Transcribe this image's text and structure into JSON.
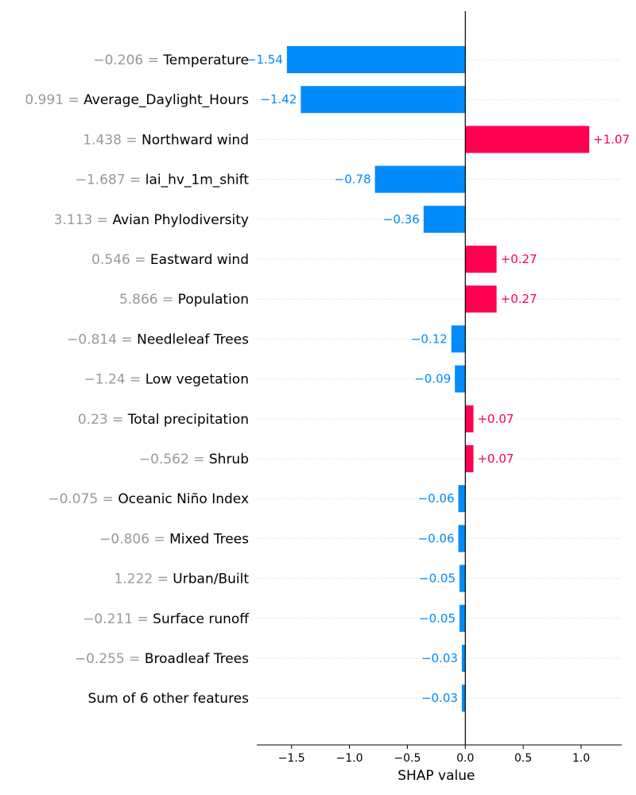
{
  "chart_data": {
    "type": "bar",
    "xlabel": "SHAP value",
    "xlim": [
      -1.8,
      1.35
    ],
    "xticks": [
      -1.5,
      -1.0,
      -0.5,
      0.0,
      0.5,
      1.0
    ],
    "xtick_labels": [
      "−1.5",
      "−1.0",
      "−0.5",
      "0.0",
      "0.5",
      "1.0"
    ],
    "grid": "dotted horizontal row guides",
    "colors": {
      "positive": "#ff0051",
      "negative": "#008bfb",
      "value_text": "#999999",
      "feature_text": "#000000"
    },
    "rows": [
      {
        "value_text": "−0.206",
        "feature": "Temperature",
        "shap": -1.54,
        "label": "−1.54"
      },
      {
        "value_text": "0.991",
        "feature": "Average_Daylight_Hours",
        "shap": -1.42,
        "label": "−1.42"
      },
      {
        "value_text": "1.438",
        "feature": "Northward wind",
        "shap": 1.07,
        "label": "+1.07"
      },
      {
        "value_text": "−1.687",
        "feature": "lai_hv_1m_shift",
        "shap": -0.78,
        "label": "−0.78"
      },
      {
        "value_text": "3.113",
        "feature": "Avian Phylodiversity",
        "shap": -0.36,
        "label": "−0.36"
      },
      {
        "value_text": "0.546",
        "feature": "Eastward wind",
        "shap": 0.27,
        "label": "+0.27"
      },
      {
        "value_text": "5.866",
        "feature": "Population",
        "shap": 0.27,
        "label": "+0.27"
      },
      {
        "value_text": "−0.814",
        "feature": "Needleleaf Trees",
        "shap": -0.12,
        "label": "−0.12"
      },
      {
        "value_text": "−1.24",
        "feature": "Low vegetation",
        "shap": -0.09,
        "label": "−0.09"
      },
      {
        "value_text": "0.23",
        "feature": "Total precipitation",
        "shap": 0.07,
        "label": "+0.07"
      },
      {
        "value_text": "−0.562",
        "feature": "Shrub",
        "shap": 0.07,
        "label": "+0.07"
      },
      {
        "value_text": "−0.075",
        "feature": "Oceanic Niño Index",
        "shap": -0.06,
        "label": "−0.06"
      },
      {
        "value_text": "−0.806",
        "feature": "Mixed Trees",
        "shap": -0.06,
        "label": "−0.06"
      },
      {
        "value_text": "1.222",
        "feature": "Urban/Built",
        "shap": -0.05,
        "label": "−0.05"
      },
      {
        "value_text": "−0.211",
        "feature": "Surface runoff",
        "shap": -0.05,
        "label": "−0.05"
      },
      {
        "value_text": "−0.255",
        "feature": "Broadleaf Trees",
        "shap": -0.03,
        "label": "−0.03"
      },
      {
        "value_text": "",
        "feature": "Sum of 6 other features",
        "shap": -0.03,
        "label": "−0.03"
      }
    ]
  }
}
